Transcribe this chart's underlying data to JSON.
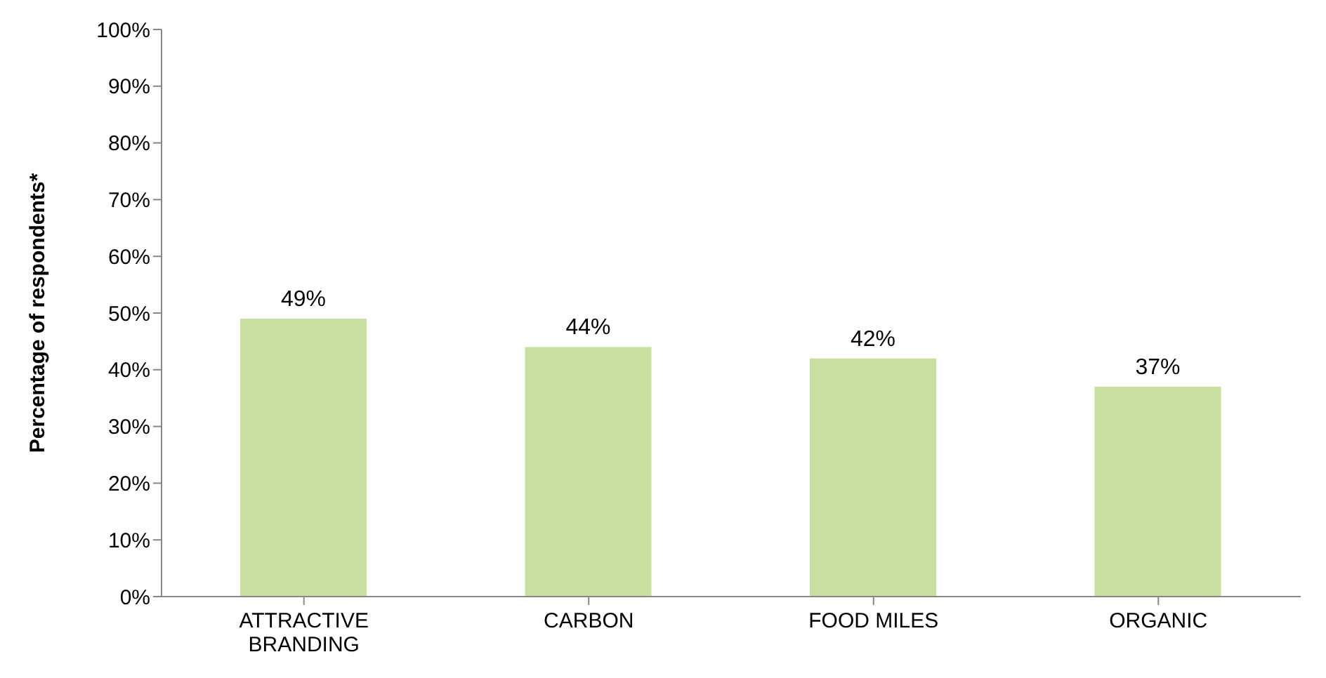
{
  "chart_data": {
    "type": "bar",
    "ylabel": "Percentage of respondents*",
    "categories": [
      "ATTRACTIVE BRANDING",
      "CARBON",
      "FOOD MILES",
      "ORGANIC"
    ],
    "values": [
      49,
      44,
      42,
      37
    ],
    "value_labels": [
      "49%",
      "44%",
      "42%",
      "37%"
    ],
    "color": "#c9df9f",
    "ylim": [
      0,
      100
    ],
    "yticks": [
      {
        "value": 0,
        "label": "0%"
      },
      {
        "value": 10,
        "label": "10%"
      },
      {
        "value": 20,
        "label": "20%"
      },
      {
        "value": 30,
        "label": "30%"
      },
      {
        "value": 40,
        "label": "40%"
      },
      {
        "value": 50,
        "label": "50%"
      },
      {
        "value": 60,
        "label": "60%"
      },
      {
        "value": 70,
        "label": "70%"
      },
      {
        "value": 80,
        "label": "80%"
      },
      {
        "value": 90,
        "label": "90%"
      },
      {
        "value": 100,
        "label": "100%"
      }
    ],
    "grid": false,
    "legend": false
  }
}
